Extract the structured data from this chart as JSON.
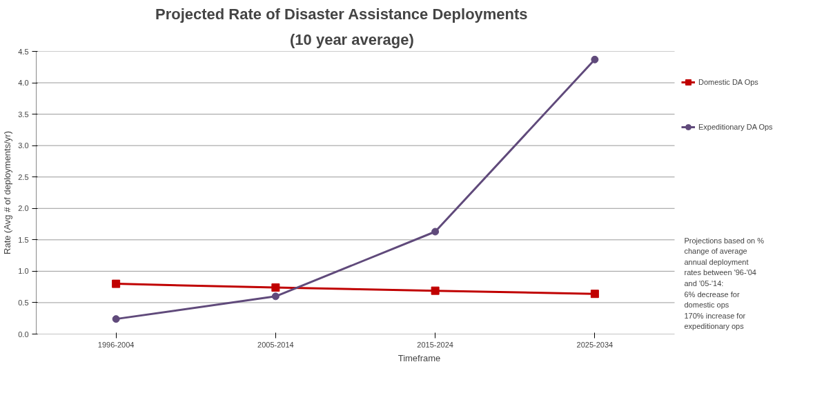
{
  "chart_data": {
    "type": "line",
    "title": "Projected Rate of Disaster Assistance Deployments",
    "subtitle": "(10 year average)",
    "xlabel": "Timeframe",
    "ylabel": "Rate (Avg # of deployments/yr)",
    "categories": [
      "1996-2004",
      "2005-2014",
      "2015-2024",
      "2025-2034"
    ],
    "series": [
      {
        "name": "Domestic DA Ops",
        "color": "#c00000",
        "marker": "square",
        "values": [
          0.8,
          0.74,
          0.69,
          0.64
        ]
      },
      {
        "name": "Expeditionary DA Ops",
        "color": "#604a7b",
        "marker": "circle",
        "values": [
          0.24,
          0.6,
          1.63,
          4.37
        ]
      }
    ],
    "ylim": [
      0,
      4.5
    ],
    "yticks": [
      {
        "value": 0,
        "label": "0.0"
      },
      {
        "value": 0.5,
        "label": "0.5"
      },
      {
        "value": 1,
        "label": "1.0"
      },
      {
        "value": 1.5,
        "label": "1.5"
      },
      {
        "value": 2,
        "label": "2.0"
      },
      {
        "value": 2.5,
        "label": "2.5"
      },
      {
        "value": 3,
        "label": "3.0"
      },
      {
        "value": 3.5,
        "label": "3.5"
      },
      {
        "value": 4,
        "label": "4.0"
      },
      {
        "value": 4.5,
        "label": "4.5"
      }
    ],
    "grid": "y",
    "legend": "right",
    "line_style": "solid",
    "annotations": [
      "Projections based on %\nchange of average\nannual deployment\nrates between '96-'04\nand '05-'14:\n6% decrease for\ndomestic ops\n170% increase for\nexpeditionary ops"
    ]
  }
}
